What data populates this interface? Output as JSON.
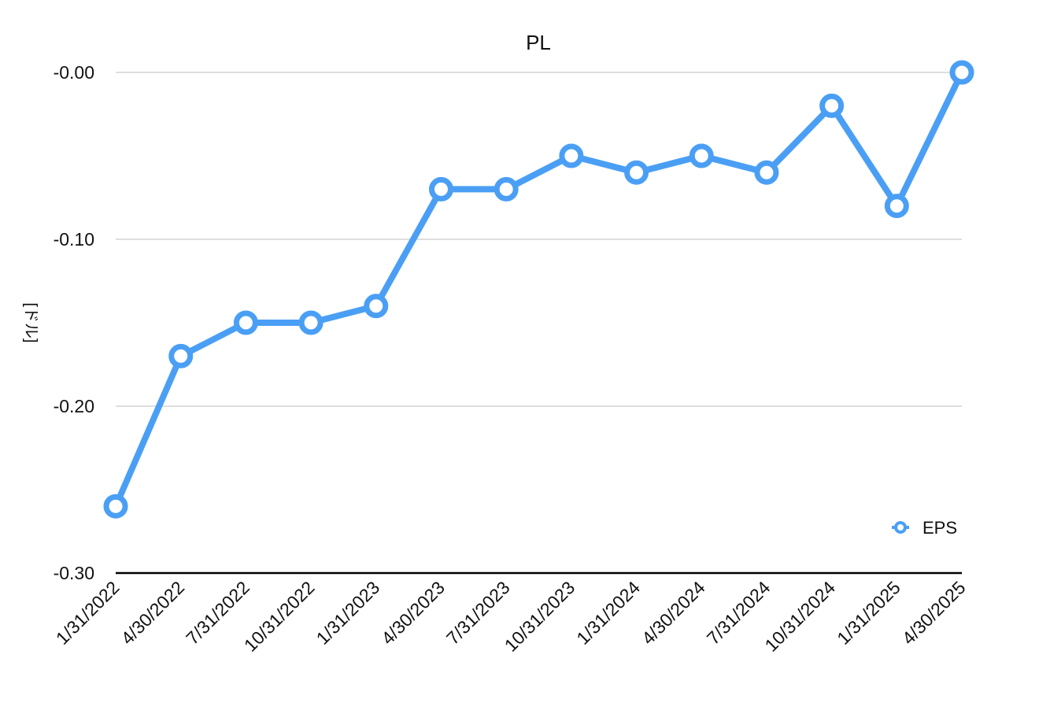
{
  "chart_data": {
    "type": "line",
    "title": "PL",
    "xlabel": "",
    "ylabel": "[ドル]",
    "categories": [
      "1/31/2022",
      "4/30/2022",
      "7/31/2022",
      "10/31/2022",
      "1/31/2023",
      "4/30/2023",
      "7/31/2023",
      "10/31/2023",
      "1/31/2024",
      "4/30/2024",
      "7/31/2024",
      "10/31/2024",
      "1/31/2025",
      "4/30/2025"
    ],
    "series": [
      {
        "name": "EPS",
        "color": "#4a9ff5",
        "values": [
          -0.26,
          -0.17,
          -0.15,
          -0.15,
          -0.14,
          -0.07,
          -0.07,
          -0.05,
          -0.06,
          -0.05,
          -0.06,
          -0.02,
          -0.08,
          0.0
        ]
      }
    ],
    "ylim": [
      -0.3,
      0.0
    ],
    "yticks": [
      -0.3,
      -0.2,
      -0.1,
      0.0
    ],
    "ytick_labels": [
      "-0.30",
      "-0.20",
      "-0.10",
      "-0.00"
    ],
    "grid": true,
    "legend_position": "bottom-right"
  }
}
